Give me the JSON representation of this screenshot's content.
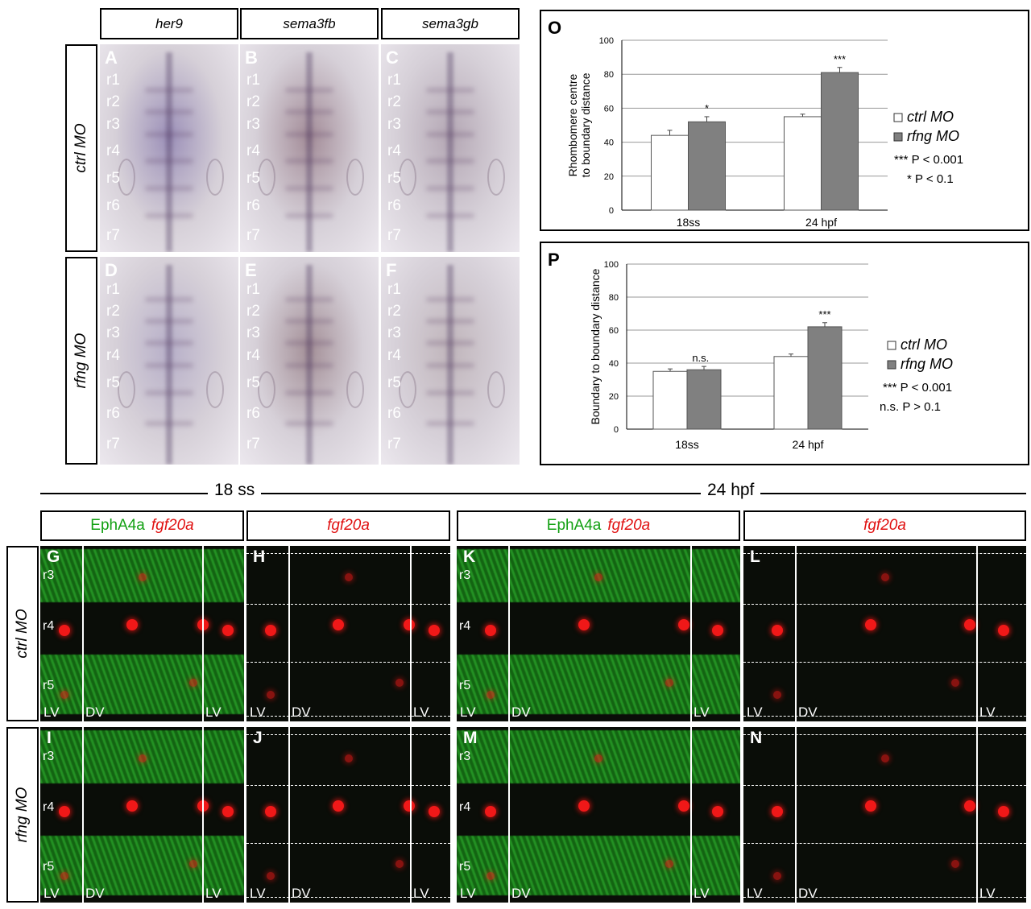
{
  "ish_section": {
    "gene_headers": [
      "her9",
      "sema3fb",
      "sema3gb"
    ],
    "row_labels": [
      "ctrl MO",
      "rfng MO"
    ],
    "panels": [
      {
        "letter": "A",
        "tint": "#9c90b8",
        "rhombomeres": [
          "r1",
          "r2",
          "r3",
          "r4",
          "r5",
          "r6",
          "r7"
        ]
      },
      {
        "letter": "B",
        "tint": "#a38c98",
        "rhombomeres": [
          "r1",
          "r2",
          "r3",
          "r4",
          "r5",
          "r6",
          "r7"
        ]
      },
      {
        "letter": "C",
        "tint": "#b4a7b4",
        "rhombomeres": [
          "r1",
          "r2",
          "r3",
          "r4",
          "r5",
          "r6",
          "r7"
        ]
      },
      {
        "letter": "D",
        "tint": "#b7afc8",
        "rhombomeres": [
          "r1",
          "r2",
          "r3",
          "r4",
          "r5",
          "r6",
          "r7"
        ]
      },
      {
        "letter": "E",
        "tint": "#a49098",
        "rhombomeres": [
          "r1",
          "r2",
          "r3",
          "r4",
          "r5",
          "r6",
          "r7"
        ]
      },
      {
        "letter": "F",
        "tint": "#c0b5bb",
        "rhombomeres": [
          "r1",
          "r2",
          "r3",
          "r4",
          "r5",
          "r6",
          "r7"
        ]
      }
    ]
  },
  "chart_data": [
    {
      "type": "bar",
      "panel_letter": "O",
      "ylabel": "Rhombomere centre to boundary distance",
      "ylim": [
        0,
        100
      ],
      "yticks": [
        "0",
        "20",
        "40",
        "60",
        "80",
        "100"
      ],
      "categories": [
        "18ss",
        "24 hpf"
      ],
      "series": [
        {
          "name": "ctrl MO",
          "values": [
            44,
            55
          ],
          "errors": [
            3,
            1.5
          ]
        },
        {
          "name": "rfng MO",
          "values": [
            52,
            81
          ],
          "errors": [
            3,
            3
          ]
        }
      ],
      "annotations": [
        "*",
        "***"
      ],
      "legend_position": "right",
      "stats": [
        "*** P < 0.001",
        "* P < 0.1"
      ],
      "grid": true
    },
    {
      "type": "bar",
      "panel_letter": "P",
      "ylabel": "Boundary to boundary distance",
      "ylim": [
        0,
        100
      ],
      "yticks": [
        "0",
        "20",
        "40",
        "60",
        "80",
        "100"
      ],
      "categories": [
        "18ss",
        "24 hpf"
      ],
      "series": [
        {
          "name": "ctrl MO",
          "values": [
            35,
            44
          ],
          "errors": [
            1.5,
            1.5
          ]
        },
        {
          "name": "rfng MO",
          "values": [
            36,
            62
          ],
          "errors": [
            2,
            2.5
          ]
        }
      ],
      "annotations": [
        "n.s.",
        "***"
      ],
      "legend_position": "right",
      "stats": [
        "***  P < 0.001",
        "n.s. P > 0.1"
      ],
      "grid": true
    }
  ],
  "fluor_section": {
    "stages": [
      "18 ss",
      "24 hpf"
    ],
    "channel_green": "EphA4a",
    "channel_red": "fgf20a",
    "row_labels": [
      "ctrl MO",
      "rfng MO"
    ],
    "view_labels": {
      "lateral": "LV",
      "dorsal": "DV"
    },
    "rhombomeres": [
      "r3",
      "r4",
      "r5"
    ],
    "panel_letters": [
      "G",
      "H",
      "K",
      "L",
      "I",
      "J",
      "M",
      "N"
    ],
    "colors": {
      "green": "#1aa81a",
      "red": "#e01010"
    }
  }
}
